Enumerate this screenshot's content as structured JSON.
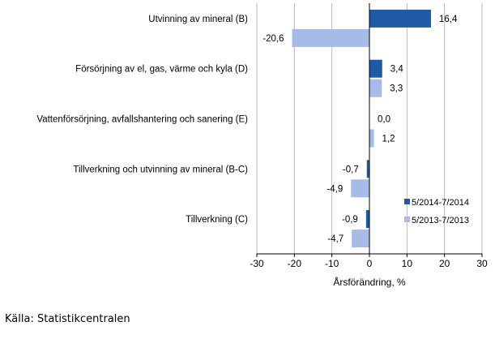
{
  "chart_data": {
    "type": "bar",
    "orientation": "horizontal",
    "categories": [
      "Utvinning av mineral  (B)",
      "Försörjning av el, gas, värme och kyla (D)",
      "Vattenförsörjning, avfallshantering och sanering (E)",
      "Tillverkning och utvinning av mineral (B-C)",
      "Tillverkning (C)"
    ],
    "series": [
      {
        "name": "5/2014-7/2014",
        "values": [
          16.4,
          3.4,
          0.0,
          -0.7,
          -0.9
        ],
        "labels": [
          "16,4",
          "3,4",
          "0,0",
          "-0,7",
          "-0,9"
        ],
        "color": "#1f5aa6"
      },
      {
        "name": "5/2013-7/2013",
        "values": [
          -20.6,
          3.3,
          1.2,
          -4.9,
          -4.7
        ],
        "labels": [
          "-20,6",
          "3,3",
          "1,2",
          "-4,9",
          "-4,7"
        ],
        "color": "#a6bbe8"
      }
    ],
    "xlim": [
      -30,
      30
    ],
    "xticks": [
      -30,
      -20,
      -10,
      0,
      10,
      20,
      30
    ],
    "xlabel": "Årsförändring, %",
    "grid": true,
    "legend": "bottom-right"
  },
  "source": "Källa: Statistikcentralen"
}
